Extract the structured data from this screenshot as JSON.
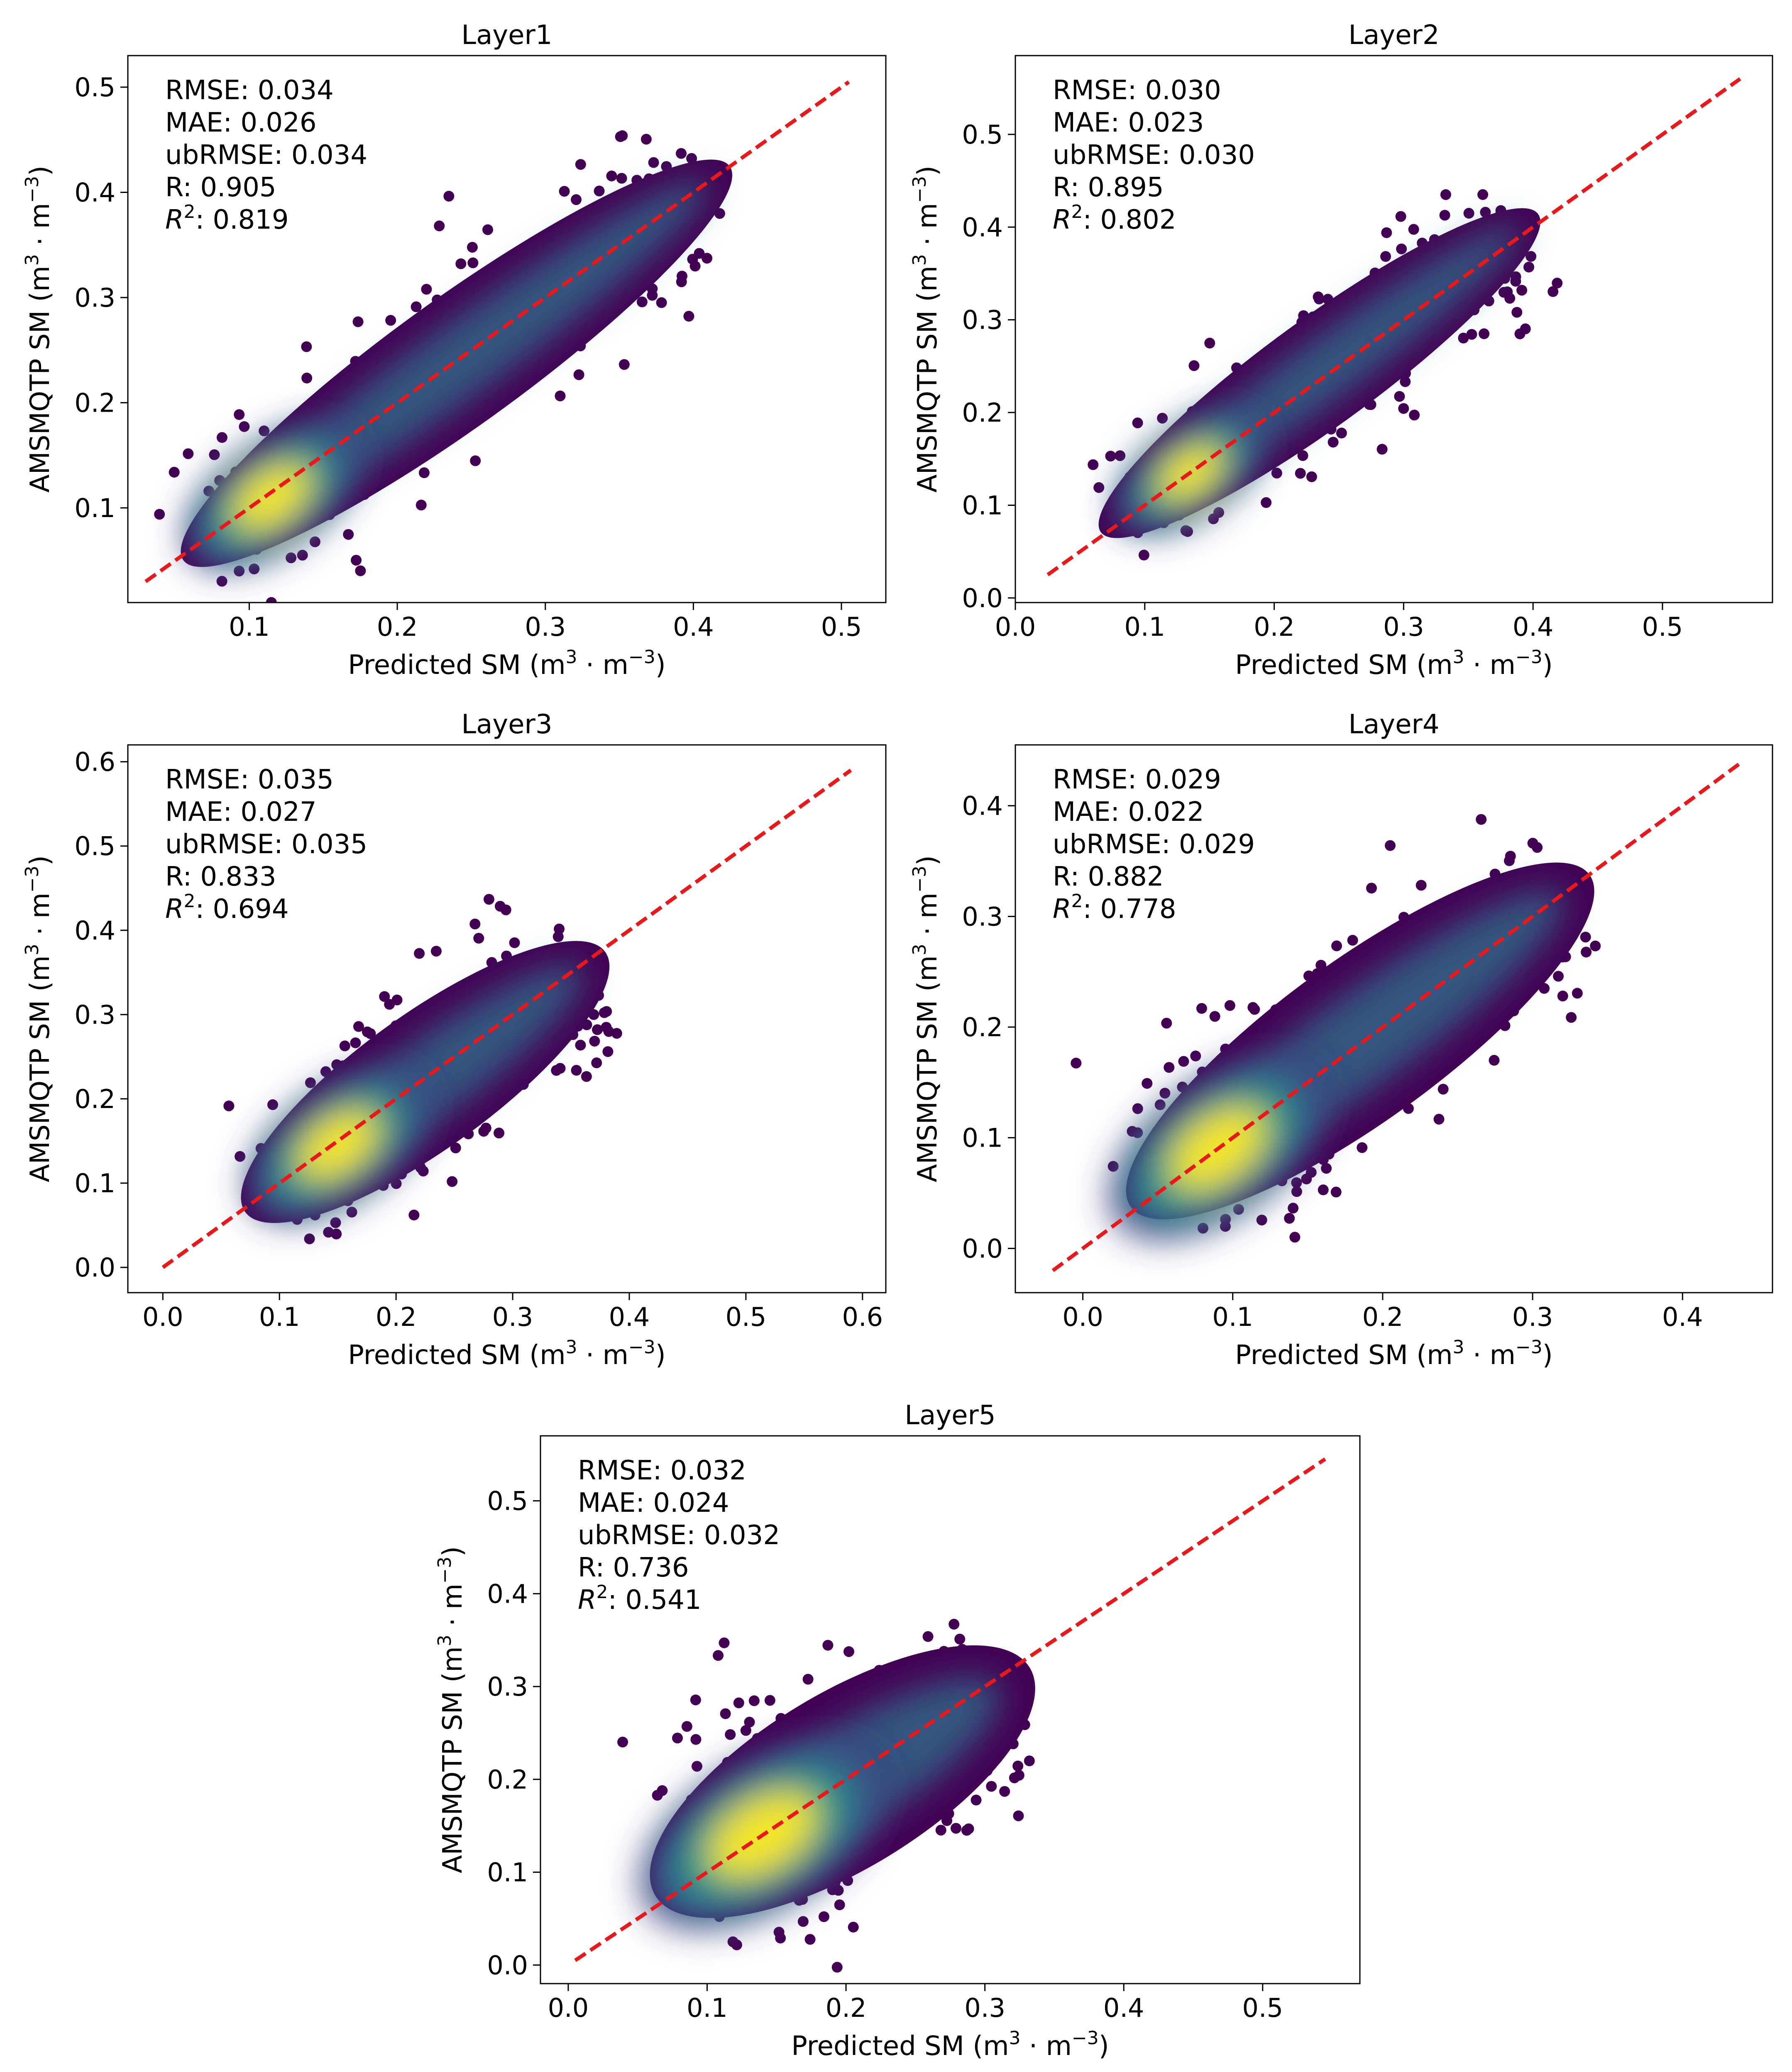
{
  "figure": {
    "x_label_prefix": "Predicted SM (m",
    "y_label_prefix": "AMSMQTP SM (m",
    "unit_sup3": "3",
    "unit_mid": " · m",
    "unit_supneg3": "−3",
    "unit_close": ")",
    "colors": {
      "line": "#e8181b",
      "axis": "#000000",
      "low": "#440154",
      "mid": "#21918c",
      "high": "#fde725"
    }
  },
  "chart_data": [
    {
      "type": "scatter",
      "title": "Layer1",
      "xlim": [
        0.018,
        0.53
      ],
      "ylim": [
        0.01,
        0.53
      ],
      "xticks": [
        "0.1",
        "0.2",
        "0.3",
        "0.4",
        "0.5"
      ],
      "yticks": [
        "0.1",
        "0.2",
        "0.3",
        "0.4",
        "0.5"
      ],
      "xtick_values": [
        0.1,
        0.2,
        0.3,
        0.4,
        0.5
      ],
      "ytick_values": [
        0.1,
        0.2,
        0.3,
        0.4,
        0.5
      ],
      "identity_line": [
        0.03,
        0.505
      ],
      "stats": [
        "RMSE: 0.034",
        "MAE: 0.026",
        "ubRMSE: 0.034",
        "R: 0.905",
        ": 0.819"
      ],
      "r2_value": "0.819",
      "cloud": {
        "start": [
          0.07,
          0.065
        ],
        "end": [
          0.41,
          0.41
        ],
        "width": 0.042,
        "peak": [
          0.115,
          0.11
        ]
      }
    },
    {
      "type": "scatter",
      "title": "Layer2",
      "xlim": [
        0,
        0.585
      ],
      "ylim": [
        -0.005,
        0.585
      ],
      "xticks": [
        "0.0",
        "0.1",
        "0.2",
        "0.3",
        "0.4",
        "0.5"
      ],
      "yticks": [
        "0.0",
        "0.1",
        "0.2",
        "0.3",
        "0.4",
        "0.5"
      ],
      "xtick_values": [
        0.0,
        0.1,
        0.2,
        0.3,
        0.4,
        0.5
      ],
      "ytick_values": [
        0.0,
        0.1,
        0.2,
        0.3,
        0.4,
        0.5
      ],
      "identity_line": [
        0.025,
        0.56
      ],
      "stats": [
        "RMSE: 0.030",
        "MAE: 0.023",
        "ubRMSE: 0.030",
        "R: 0.895",
        ": 0.802"
      ],
      "r2_value": "0.802",
      "cloud": {
        "start": [
          0.08,
          0.085
        ],
        "end": [
          0.39,
          0.4
        ],
        "width": 0.04,
        "peak": [
          0.135,
          0.135
        ]
      }
    },
    {
      "type": "scatter",
      "title": "Layer3",
      "xlim": [
        -0.03,
        0.62
      ],
      "ylim": [
        -0.03,
        0.62
      ],
      "xticks": [
        "0.0",
        "0.1",
        "0.2",
        "0.3",
        "0.4",
        "0.5",
        "0.6"
      ],
      "yticks": [
        "0.0",
        "0.1",
        "0.2",
        "0.3",
        "0.4",
        "0.5",
        "0.6"
      ],
      "xtick_values": [
        0.0,
        0.1,
        0.2,
        0.3,
        0.4,
        0.5,
        0.6
      ],
      "ytick_values": [
        0.0,
        0.1,
        0.2,
        0.3,
        0.4,
        0.5,
        0.6
      ],
      "identity_line": [
        0.0,
        0.59
      ],
      "stats": [
        "RMSE: 0.035",
        "MAE: 0.027",
        "ubRMSE: 0.035",
        "R: 0.833",
        ": 0.694"
      ],
      "r2_value": "0.694",
      "cloud": {
        "start": [
          0.09,
          0.085
        ],
        "end": [
          0.36,
          0.355
        ],
        "width": 0.055,
        "peak": [
          0.15,
          0.145
        ]
      }
    },
    {
      "type": "scatter",
      "title": "Layer4",
      "xlim": [
        -0.045,
        0.46
      ],
      "ylim": [
        -0.04,
        0.455
      ],
      "xticks": [
        "0.0",
        "0.1",
        "0.2",
        "0.3",
        "0.4"
      ],
      "yticks": [
        "0.0",
        "0.1",
        "0.2",
        "0.3",
        "0.4"
      ],
      "xtick_values": [
        0.0,
        0.1,
        0.2,
        0.3,
        0.4
      ],
      "ytick_values": [
        0.0,
        0.1,
        0.2,
        0.3,
        0.4
      ],
      "identity_line": [
        -0.02,
        0.44
      ],
      "stats": [
        "RMSE: 0.029",
        "MAE: 0.022",
        "ubRMSE: 0.029",
        "R: 0.882",
        ": 0.778"
      ],
      "r2_value": "0.778",
      "cloud": {
        "start": [
          0.05,
          0.055
        ],
        "end": [
          0.32,
          0.32
        ],
        "width": 0.05,
        "peak": [
          0.09,
          0.09
        ]
      }
    },
    {
      "type": "scatter",
      "title": "Layer5",
      "xlim": [
        -0.02,
        0.57
      ],
      "ylim": [
        -0.02,
        0.57
      ],
      "xticks": [
        "0.0",
        "0.1",
        "0.2",
        "0.3",
        "0.4",
        "0.5"
      ],
      "yticks": [
        "0.0",
        "0.1",
        "0.2",
        "0.3",
        "0.4",
        "0.5"
      ],
      "xtick_values": [
        0.0,
        0.1,
        0.2,
        0.3,
        0.4,
        0.5
      ],
      "ytick_values": [
        0.0,
        0.1,
        0.2,
        0.3,
        0.4,
        0.5
      ],
      "identity_line": [
        0.005,
        0.545
      ],
      "stats": [
        "RMSE: 0.032",
        "MAE: 0.024",
        "ubRMSE: 0.032",
        "R: 0.736",
        ": 0.541"
      ],
      "r2_value": "0.541",
      "cloud": {
        "start": [
          0.085,
          0.095
        ],
        "end": [
          0.31,
          0.3
        ],
        "width": 0.065,
        "peak": [
          0.14,
          0.14
        ]
      }
    }
  ]
}
